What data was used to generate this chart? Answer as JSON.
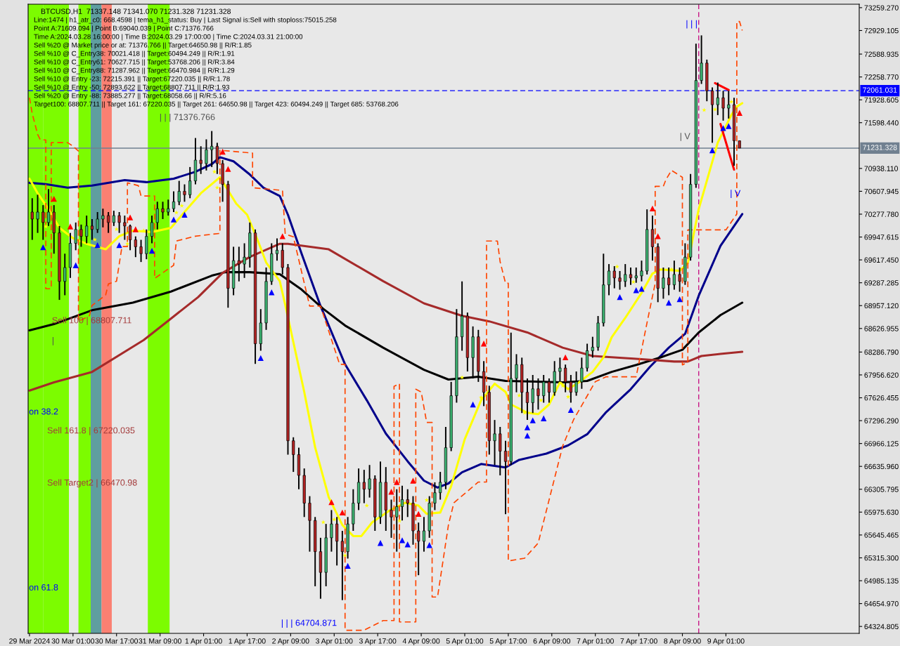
{
  "chart_data": {
    "type": "candlestick",
    "title": "BTCUSD,H1  71337.148 71341.070 71231.328 71231.328",
    "x": [
      "2024-03-29T10:00",
      "2024-03-29T12:00",
      "2024-03-29T14:00",
      "2024-03-29T16:00",
      "2024-03-29T18:00",
      "2024-03-29T20:00",
      "2024-03-29T22:00",
      "2024-03-30T00:00",
      "2024-03-30T02:00",
      "2024-03-30T04:00",
      "2024-03-30T06:00",
      "2024-03-30T08:00",
      "2024-03-30T10:00",
      "2024-03-30T12:00",
      "2024-03-30T14:00",
      "2024-03-30T16:00",
      "2024-03-30T18:00",
      "2024-03-30T20:00",
      "2024-03-30T22:00",
      "2024-03-31T00:00",
      "2024-03-31T02:00",
      "2024-03-31T04:00",
      "2024-03-31T06:00",
      "2024-03-31T08:00",
      "2024-03-31T10:00",
      "2024-03-31T12:00",
      "2024-03-31T14:00",
      "2024-03-31T16:00",
      "2024-03-31T18:00",
      "2024-03-31T20:00",
      "2024-03-31T22:00",
      "2024-04-01T00:00",
      "2024-04-01T02:00",
      "2024-04-01T04:00",
      "2024-04-01T06:00",
      "2024-04-01T08:00",
      "2024-04-01T10:00",
      "2024-04-01T12:00",
      "2024-04-01T14:00",
      "2024-04-01T16:00",
      "2024-04-01T18:00",
      "2024-04-01T20:00",
      "2024-04-01T22:00",
      "2024-04-02T00:00",
      "2024-04-02T02:00",
      "2024-04-02T04:00",
      "2024-04-02T06:00",
      "2024-04-02T08:00",
      "2024-04-02T10:00",
      "2024-04-02T12:00",
      "2024-04-02T14:00",
      "2024-04-02T16:00",
      "2024-04-02T18:00",
      "2024-04-02T20:00",
      "2024-04-02T22:00",
      "2024-04-03T00:00",
      "2024-04-03T02:00",
      "2024-04-03T04:00",
      "2024-04-03T06:00",
      "2024-04-03T08:00",
      "2024-04-03T10:00",
      "2024-04-03T12:00",
      "2024-04-03T14:00",
      "2024-04-03T16:00",
      "2024-04-03T18:00",
      "2024-04-03T20:00",
      "2024-04-03T22:00",
      "2024-04-04T00:00",
      "2024-04-04T02:00",
      "2024-04-04T04:00",
      "2024-04-04T06:00",
      "2024-04-04T08:00",
      "2024-04-04T10:00",
      "2024-04-04T12:00",
      "2024-04-04T14:00",
      "2024-04-04T16:00",
      "2024-04-04T18:00",
      "2024-04-04T20:00",
      "2024-04-04T22:00",
      "2024-04-05T00:00",
      "2024-04-05T02:00",
      "2024-04-05T04:00",
      "2024-04-05T06:00",
      "2024-04-05T08:00",
      "2024-04-05T10:00",
      "2024-04-05T12:00",
      "2024-04-05T14:00",
      "2024-04-05T16:00",
      "2024-04-05T18:00",
      "2024-04-05T20:00",
      "2024-04-05T22:00",
      "2024-04-06T00:00",
      "2024-04-06T02:00",
      "2024-04-06T04:00",
      "2024-04-06T06:00",
      "2024-04-06T08:00",
      "2024-04-06T10:00",
      "2024-04-06T12:00",
      "2024-04-06T14:00",
      "2024-04-06T16:00",
      "2024-04-06T18:00",
      "2024-04-06T20:00",
      "2024-04-06T22:00",
      "2024-04-07T00:00",
      "2024-04-07T02:00",
      "2024-04-07T04:00",
      "2024-04-07T06:00",
      "2024-04-07T08:00",
      "2024-04-07T10:00",
      "2024-04-07T12:00",
      "2024-04-07T14:00",
      "2024-04-07T16:00",
      "2024-04-07T18:00",
      "2024-04-07T20:00",
      "2024-04-07T22:00",
      "2024-04-08T00:00",
      "2024-04-08T02:00",
      "2024-04-08T04:00",
      "2024-04-08T06:00",
      "2024-04-08T08:00",
      "2024-04-08T10:00",
      "2024-04-08T12:00",
      "2024-04-08T14:00",
      "2024-04-08T16:00",
      "2024-04-08T18:00",
      "2024-04-08T20:00",
      "2024-04-08T22:00",
      "2024-04-09T00:00",
      "2024-04-09T02:00",
      "2024-04-09T04:00",
      "2024-04-09T06:00"
    ],
    "ohlc": [
      [
        70308,
        70508,
        69907,
        70207
      ],
      [
        70207,
        70558,
        70007,
        70308
      ],
      [
        70308,
        70408,
        69907,
        70157
      ],
      [
        70157,
        70640,
        70107,
        70308
      ],
      [
        70308,
        70408,
        69707,
        70007
      ],
      [
        70007,
        70107,
        69040,
        69307
      ],
      [
        69307,
        69707,
        69107,
        69507
      ],
      [
        69507,
        70007,
        69357,
        69857
      ],
      [
        69857,
        70157,
        69757,
        70057
      ],
      [
        70057,
        70127,
        69807,
        69957
      ],
      [
        69957,
        70257,
        69857,
        70107
      ],
      [
        70107,
        70207,
        69907,
        70057
      ],
      [
        70057,
        70308,
        70007,
        70207
      ],
      [
        70207,
        70357,
        70087,
        70257
      ],
      [
        70257,
        70308,
        70007,
        70157
      ],
      [
        70157,
        70327,
        70107,
        70257
      ],
      [
        70257,
        70308,
        70007,
        70157
      ],
      [
        70157,
        70257,
        69907,
        70107
      ],
      [
        70107,
        70127,
        69757,
        69907
      ],
      [
        69907,
        69957,
        69657,
        69807
      ],
      [
        69807,
        69907,
        69587,
        69707
      ],
      [
        69707,
        70057,
        69627,
        69957
      ],
      [
        69957,
        70257,
        69857,
        70157
      ],
      [
        70157,
        70457,
        70057,
        70357
      ],
      [
        70357,
        70457,
        70207,
        70308
      ],
      [
        70308,
        70488,
        70257,
        70357
      ],
      [
        70357,
        70608,
        70308,
        70457
      ],
      [
        70457,
        70758,
        70408,
        70608
      ],
      [
        70608,
        70708,
        70457,
        70558
      ],
      [
        70558,
        70958,
        70508,
        70758
      ],
      [
        70758,
        71377,
        70708,
        71058
      ],
      [
        71058,
        71258,
        70858,
        71008
      ],
      [
        71008,
        71358,
        70908,
        71208
      ],
      [
        71208,
        71478,
        70958,
        71258
      ],
      [
        71258,
        71308,
        70858,
        71008
      ],
      [
        71008,
        71058,
        70457,
        70708
      ],
      [
        70708,
        70758,
        68927,
        69207
      ],
      [
        69207,
        69807,
        69107,
        69607
      ],
      [
        69607,
        69807,
        69307,
        69557
      ],
      [
        69557,
        69857,
        69357,
        69657
      ],
      [
        69657,
        70157,
        69507,
        70007
      ],
      [
        70007,
        70057,
        68116,
        68407
      ],
      [
        68407,
        68907,
        68306,
        68707
      ],
      [
        68707,
        69507,
        68607,
        69307
      ],
      [
        69307,
        69857,
        69257,
        69707
      ],
      [
        69707,
        69927,
        69607,
        69757
      ],
      [
        69757,
        69857,
        69407,
        69507
      ],
      [
        69507,
        69557,
        66806,
        67006
      ],
      [
        67006,
        67056,
        66556,
        66806
      ],
      [
        66806,
        66906,
        66306,
        66506
      ],
      [
        66506,
        66606,
        65905,
        66105
      ],
      [
        66105,
        66206,
        65405,
        65855
      ],
      [
        65855,
        65905,
        64905,
        65405
      ],
      [
        65405,
        65605,
        64725,
        65105
      ],
      [
        65105,
        65805,
        64905,
        65605
      ],
      [
        65605,
        66005,
        65405,
        65805
      ],
      [
        65805,
        65905,
        65205,
        65555
      ],
      [
        65555,
        65705,
        64705,
        65405
      ],
      [
        65405,
        65905,
        65305,
        65805
      ],
      [
        65805,
        66306,
        65705,
        66105
      ],
      [
        66105,
        66606,
        66005,
        66406
      ],
      [
        66406,
        66586,
        66105,
        66306
      ],
      [
        66306,
        66656,
        66186,
        66456
      ],
      [
        66456,
        66506,
        65705,
        65905
      ],
      [
        65905,
        66706,
        65805,
        66406
      ],
      [
        66406,
        66626,
        65705,
        66005
      ],
      [
        66005,
        66156,
        65605,
        65905
      ],
      [
        65905,
        66306,
        65405,
        66055
      ],
      [
        66055,
        66356,
        65855,
        66156
      ],
      [
        66156,
        66306,
        65905,
        66105
      ],
      [
        66105,
        66206,
        65505,
        65705
      ],
      [
        65705,
        65825,
        65065,
        65555
      ],
      [
        65555,
        65905,
        65405,
        65705
      ],
      [
        65705,
        66206,
        65605,
        66105
      ],
      [
        66105,
        66406,
        66005,
        66256
      ],
      [
        66256,
        66556,
        66156,
        66406
      ],
      [
        66406,
        67206,
        66306,
        66906
      ],
      [
        66906,
        67856,
        66856,
        67656
      ],
      [
        67656,
        68907,
        67556,
        68507
      ],
      [
        68507,
        69307,
        68306,
        68807
      ],
      [
        68807,
        68857,
        68006,
        68206
      ],
      [
        68206,
        68657,
        67906,
        68507
      ],
      [
        68507,
        68607,
        67856,
        68006
      ],
      [
        68006,
        68156,
        67506,
        67706
      ],
      [
        67706,
        67800,
        66806,
        67006
      ],
      [
        67006,
        67306,
        66656,
        67106
      ],
      [
        67106,
        67206,
        66506,
        66856
      ],
      [
        66856,
        67006,
        65945,
        66706
      ],
      [
        66706,
        68567,
        66656,
        67906
      ],
      [
        67906,
        68256,
        67706,
        68106
      ],
      [
        68106,
        68206,
        67406,
        67706
      ],
      [
        67706,
        67906,
        67306,
        67556
      ],
      [
        67556,
        67956,
        67406,
        67756
      ],
      [
        67756,
        67906,
        67456,
        67656
      ],
      [
        67656,
        67956,
        67556,
        67856
      ],
      [
        67856,
        67906,
        67556,
        67706
      ],
      [
        67706,
        68156,
        67656,
        68006
      ],
      [
        68006,
        68206,
        67856,
        68056
      ],
      [
        68056,
        68106,
        67706,
        67856
      ],
      [
        67856,
        67956,
        67556,
        67706
      ],
      [
        67706,
        68006,
        67656,
        67856
      ],
      [
        67856,
        68206,
        67756,
        68056
      ],
      [
        68056,
        68407,
        68006,
        68306
      ],
      [
        68306,
        68507,
        68206,
        68357
      ],
      [
        68357,
        68807,
        68306,
        68707
      ],
      [
        68707,
        69707,
        68657,
        69257
      ],
      [
        69257,
        69557,
        69107,
        69457
      ],
      [
        69457,
        69527,
        69207,
        69357
      ],
      [
        69357,
        69457,
        69187,
        69307
      ],
      [
        69307,
        69557,
        69227,
        69407
      ],
      [
        69407,
        69507,
        69257,
        69357
      ],
      [
        69357,
        69507,
        69287,
        69387
      ],
      [
        69387,
        69607,
        69307,
        69457
      ],
      [
        69457,
        70347,
        69407,
        70057
      ],
      [
        70057,
        70257,
        69607,
        69807
      ],
      [
        69807,
        69857,
        69007,
        69207
      ],
      [
        69207,
        69507,
        69057,
        69357
      ],
      [
        69357,
        69507,
        69107,
        69257
      ],
      [
        69257,
        69607,
        69187,
        69407
      ],
      [
        69407,
        69507,
        69157,
        69307
      ],
      [
        69307,
        69857,
        69257,
        69657
      ],
      [
        69657,
        70858,
        69607,
        70708
      ],
      [
        70708,
        72739,
        70658,
        72208
      ],
      [
        72208,
        72859,
        72158,
        72459
      ],
      [
        72459,
        72509,
        71908,
        72058
      ],
      [
        72058,
        72108,
        71308,
        71858
      ],
      [
        71858,
        72178,
        71708,
        71958
      ],
      [
        71958,
        72058,
        71628,
        71808
      ],
      [
        71808,
        72058,
        71658,
        71858
      ],
      [
        71858,
        71958,
        70978,
        71338
      ],
      [
        71337.148,
        71341.07,
        71231.328,
        71231.328
      ]
    ],
    "series": [
      {
        "type": "line",
        "color": "#00008b",
        "x": [
          "2024-03-29T09:00",
          "2024-03-29T15:00",
          "2024-03-29T23:00",
          "2024-03-30T08:00",
          "2024-03-30T20:00",
          "2024-03-31T04:00",
          "2024-03-31T14:00",
          "2024-03-31T22:00",
          "2024-04-01T04:00",
          "2024-04-01T07:00",
          "2024-04-01T12:00",
          "2024-04-01T18:00",
          "2024-04-01T23:00",
          "2024-04-02T05:00",
          "2024-04-02T08:00",
          "2024-04-02T13:00",
          "2024-04-02T20:00",
          "2024-04-03T05:00",
          "2024-04-03T13:00",
          "2024-04-03T20:00",
          "2024-04-04T04:00",
          "2024-04-04T10:00",
          "2024-04-04T15:00",
          "2024-04-04T19:00",
          "2024-04-05T00:00",
          "2024-04-05T07:00",
          "2024-04-05T16:00",
          "2024-04-05T21:00",
          "2024-04-06T07:00",
          "2024-04-06T15:00",
          "2024-04-06T22:00",
          "2024-04-07T05:00",
          "2024-04-07T14:00",
          "2024-04-07T21:00",
          "2024-04-08T04:00",
          "2024-04-08T10:00",
          "2024-04-08T15:00",
          "2024-04-08T23:00",
          "2024-04-09T07:00"
        ],
        "values": [
          70730,
          70710,
          70660,
          70690,
          70770,
          70740,
          70790,
          70890,
          71000,
          71100,
          71040,
          70850,
          70660,
          70540,
          70270,
          69710,
          68950,
          68110,
          67590,
          67110,
          66710,
          66430,
          66330,
          66390,
          66550,
          66670,
          66620,
          66730,
          66820,
          66940,
          67100,
          67420,
          67750,
          68070,
          68350,
          68550,
          69100,
          69820,
          70280
        ]
      },
      {
        "type": "line",
        "color": "#000000",
        "x": [
          "2024-03-29T09:00",
          "2024-03-29T18:00",
          "2024-03-30T08:00",
          "2024-03-30T23:00",
          "2024-03-31T13:00",
          "2024-04-01T04:00",
          "2024-04-01T09:00",
          "2024-04-01T18:00",
          "2024-04-02T05:00",
          "2024-04-02T13:00",
          "2024-04-02T21:00",
          "2024-04-03T05:00",
          "2024-04-03T19:00",
          "2024-04-04T10:00",
          "2024-04-04T19:00",
          "2024-04-05T06:00",
          "2024-04-05T16:00",
          "2024-04-06T13:00",
          "2024-04-06T22:00",
          "2024-04-07T07:00",
          "2024-04-07T16:00",
          "2024-04-08T01:00",
          "2024-04-08T09:00",
          "2024-04-08T15:00",
          "2024-04-08T23:00",
          "2024-04-09T07:00"
        ],
        "values": [
          68600,
          68690,
          68890,
          69000,
          69160,
          69390,
          69440,
          69440,
          69410,
          69190,
          68910,
          68670,
          68350,
          68030,
          67890,
          67930,
          67870,
          67850,
          67870,
          68000,
          68100,
          68210,
          68320,
          68570,
          68820,
          69000
        ]
      },
      {
        "type": "line",
        "color": "#a52a2a",
        "x": [
          "2024-03-29T09:00",
          "2024-03-29T18:00",
          "2024-03-30T08:00",
          "2024-03-31T03:00",
          "2024-03-31T13:00",
          "2024-03-31T23:00",
          "2024-04-01T08:00",
          "2024-04-01T18:00",
          "2024-04-02T05:00",
          "2024-04-02T08:00",
          "2024-04-02T23:00",
          "2024-04-03T19:00",
          "2024-04-04T10:00",
          "2024-04-05T00:00",
          "2024-04-05T10:00",
          "2024-04-06T00:00",
          "2024-04-06T13:00",
          "2024-04-07T00:00",
          "2024-04-07T16:00",
          "2024-04-08T06:00",
          "2024-04-08T11:00",
          "2024-04-08T16:00",
          "2024-04-08T23:00",
          "2024-04-09T07:00"
        ],
        "values": [
          67730,
          67850,
          68000,
          68460,
          68770,
          69080,
          69430,
          69660,
          69850,
          69850,
          69770,
          69310,
          68990,
          68810,
          68730,
          68570,
          68350,
          68230,
          68190,
          68150,
          68150,
          68230,
          68260,
          68290
        ]
      },
      {
        "type": "line",
        "color": "#ffff00",
        "x": [
          "2024-03-29T09:00",
          "2024-03-29T12:00",
          "2024-03-29T16:00",
          "2024-03-29T20:00",
          "2024-03-30T01:00",
          "2024-03-30T06:00",
          "2024-03-30T13:00",
          "2024-03-30T18:00",
          "2024-03-30T23:00",
          "2024-03-31T06:00",
          "2024-03-31T13:00",
          "2024-03-31T18:00",
          "2024-04-01T00:00",
          "2024-04-01T07:00",
          "2024-04-01T13:00",
          "2024-04-01T17:00",
          "2024-04-01T21:00",
          "2024-04-02T00:00",
          "2024-04-02T05:00",
          "2024-04-02T07:00",
          "2024-04-02T10:00",
          "2024-04-02T14:00",
          "2024-04-02T18:00",
          "2024-04-02T23:00",
          "2024-04-03T04:00",
          "2024-04-03T08:00",
          "2024-04-03T11:00",
          "2024-04-03T15:00",
          "2024-04-03T21:00",
          "2024-04-04T03:00",
          "2024-04-04T08:00",
          "2024-04-04T11:00",
          "2024-04-04T16:00",
          "2024-04-04T20:00",
          "2024-04-05T01:00",
          "2024-04-05T07:00",
          "2024-04-05T12:00",
          "2024-04-05T16:00",
          "2024-04-05T18:00",
          "2024-04-06T00:00",
          "2024-04-06T04:00",
          "2024-04-06T08:00",
          "2024-04-06T12:00",
          "2024-04-06T15:00",
          "2024-04-06T19:00",
          "2024-04-07T00:00",
          "2024-04-07T04:00",
          "2024-04-07T07:00",
          "2024-04-07T12:00",
          "2024-04-07T18:00",
          "2024-04-07T22:00",
          "2024-04-08T01:00",
          "2024-04-08T08:00",
          "2024-04-08T11:00",
          "2024-04-08T15:00",
          "2024-04-08T22:00",
          "2024-04-09T03:00",
          "2024-04-09T05:00",
          "2024-04-09T07:00"
        ],
        "values": [
          70790,
          70580,
          70350,
          70080,
          69930,
          69850,
          69770,
          69960,
          70040,
          70020,
          70080,
          70310,
          70580,
          70810,
          70430,
          70270,
          69890,
          69580,
          69310,
          68970,
          68430,
          67710,
          66910,
          66190,
          65790,
          65630,
          65630,
          65830,
          65990,
          66110,
          66070,
          65950,
          65970,
          66350,
          67030,
          67590,
          67830,
          67710,
          67530,
          67410,
          67390,
          67530,
          67850,
          67750,
          67850,
          68000,
          68210,
          68500,
          68780,
          69140,
          69420,
          69480,
          69460,
          69570,
          70350,
          71310,
          71710,
          71830,
          71880
        ]
      },
      {
        "type": "line",
        "color": "#ff4500",
        "line_style": "dashed",
        "x": [
          "2024-03-29T09:00",
          "2024-03-29T10:00",
          "2024-03-29T12:00",
          "2024-03-29T13:00",
          "2024-03-29T15:00",
          "2024-03-29T15:00",
          "2024-03-29T17:00",
          "2024-03-29T17:00",
          "2024-03-29T23:00",
          "2024-03-30T01:00",
          "2024-03-30T03:00",
          "2024-03-30T03:00",
          "2024-03-30T07:00",
          "2024-03-30T08:00",
          "2024-03-30T13:00",
          "2024-03-30T14:00",
          "2024-03-30T17:00",
          "2024-03-30T19:00",
          "2024-03-30T21:00",
          "2024-03-30T21:00",
          "2024-03-31T01:00",
          "2024-03-31T02:00",
          "2024-03-31T07:00",
          "2024-03-31T07:00",
          "2024-03-31T14:00",
          "2024-03-31T15:00",
          "2024-03-31T22:00",
          "2024-04-01T07:00",
          "2024-04-01T07:00",
          "2024-04-01T19:00",
          "2024-04-01T19:00",
          "2024-04-02T06:00",
          "2024-04-02T07:00",
          "2024-04-02T10:00",
          "2024-04-02T16:00",
          "2024-04-02T20:00",
          "2024-04-03T03:00",
          "2024-04-03T05:00",
          "2024-04-03T05:00",
          "2024-04-03T12:00",
          "2024-04-03T19:00",
          "2024-04-03T23:00",
          "2024-04-03T23:00",
          "2024-04-04T01:00",
          "2024-04-04T01:00",
          "2024-04-04T07:00",
          "2024-04-04T07:00",
          "2024-04-04T09:00",
          "2024-04-04T11:00",
          "2024-04-04T13:00",
          "2024-04-04T13:00",
          "2024-04-04T15:00",
          "2024-04-04T19:00",
          "2024-04-04T21:00",
          "2024-04-05T06:00",
          "2024-04-05T09:00",
          "2024-04-05T09:00",
          "2024-04-05T13:00",
          "2024-04-05T14:00",
          "2024-04-05T16:00",
          "2024-04-05T17:00",
          "2024-04-05T17:00",
          "2024-04-05T23:00",
          "2024-04-06T04:00",
          "2024-04-06T13:00",
          "2024-04-06T17:00",
          "2024-04-07T01:00",
          "2024-04-07T05:00",
          "2024-04-07T16:00",
          "2024-04-07T20:00",
          "2024-04-07T23:00",
          "2024-04-07T23:00",
          "2024-04-08T02:00",
          "2024-04-08T03:00",
          "2024-04-08T05:00",
          "2024-04-08T07:00",
          "2024-04-08T09:00",
          "2024-04-08T09:00",
          "2024-04-08T11:00",
          "2024-04-08T11:00",
          "2024-04-09T01:00",
          "2024-04-09T05:00",
          "2024-04-09T05:00",
          "2024-04-09T06:00",
          "2024-04-09T07:00"
        ],
        "values": [
          71960,
          71730,
          71430,
          71350,
          71350,
          69200,
          69200,
          71310,
          71310,
          71260,
          71190,
          68730,
          68810,
          68960,
          69110,
          69270,
          69310,
          69810,
          69810,
          70730,
          70690,
          70540,
          70540,
          69350,
          69540,
          69890,
          69960,
          70000,
          71200,
          71160,
          70660,
          70620,
          69990,
          69950,
          68950,
          68950,
          68110,
          68110,
          64270,
          64270,
          64410,
          64410,
          67790,
          67830,
          64390,
          64390,
          67750,
          67710,
          67270,
          67270,
          64750,
          64750,
          65790,
          66110,
          66410,
          66410,
          69890,
          69890,
          69590,
          69280,
          69280,
          65270,
          65310,
          65530,
          66930,
          67310,
          67860,
          67930,
          67930,
          68710,
          69280,
          70680,
          70680,
          70780,
          70910,
          70860,
          70810,
          68100,
          68140,
          70050,
          70050,
          70280,
          73060,
          73060,
          72930
        ]
      },
      {
        "type": "line",
        "color": "#ff0000",
        "x": [
          "2024-04-08T21:00",
          "2024-04-09T02:00"
        ],
        "values": [
          72170,
          72070
        ]
      },
      {
        "type": "line",
        "color": "#ff0000",
        "x": [
          "2024-04-08T23:00",
          "2024-04-09T04:00"
        ],
        "values": [
          71580,
          70920
        ]
      },
      {
        "type": "scatter",
        "color": "#0000ff",
        "marker": "triangle",
        "x": [
          "2024-03-29T14:00",
          "2024-03-30T02:00",
          "2024-03-30T10:00",
          "2024-03-30T18:00",
          "2024-03-31T06:00",
          "2024-03-31T14:00",
          "2024-03-31T18:00",
          "2024-04-01T22:00",
          "2024-04-02T02:00",
          "2024-04-03T06:00",
          "2024-04-03T18:00",
          "2024-04-04T02:00",
          "2024-04-04T04:00",
          "2024-04-04T12:00",
          "2024-04-05T04:00",
          "2024-04-06T00:00",
          "2024-04-06T00:00",
          "2024-04-06T02:00",
          "2024-04-06T06:00",
          "2024-04-06T16:00",
          "2024-04-07T10:00",
          "2024-04-07T16:00",
          "2024-04-07T18:00",
          "2024-04-08T04:00",
          "2024-04-08T08:00",
          "2024-04-08T20:00",
          "2024-04-09T00:00",
          "2024-04-09T02:00"
        ],
        "values": [
          69800,
          69540,
          69830,
          69830,
          69750,
          70200,
          70270,
          68200,
          69150,
          65200,
          65530,
          65570,
          65510,
          65500,
          67530,
          67200,
          67080,
          67300,
          67330,
          67450,
          69080,
          69180,
          69200,
          69000,
          69050,
          71200,
          71520,
          71550
        ]
      },
      {
        "type": "scatter",
        "color": "#ff0000",
        "marker": "triangle",
        "x": [
          "2024-03-29T18:00",
          "2024-03-30T00:00",
          "2024-03-30T22:00",
          "2024-03-31T00:00",
          "2024-04-01T08:00",
          "2024-04-01T10:00",
          "2024-04-02T06:00",
          "2024-04-03T00:00",
          "2024-04-03T04:00",
          "2024-04-03T22:00",
          "2024-04-04T00:00",
          "2024-04-04T06:00",
          "2024-04-04T08:00",
          "2024-04-05T08:00",
          "2024-04-06T14:00",
          "2024-04-07T22:00",
          "2024-04-08T00:00",
          "2024-04-09T06:00"
        ],
        "values": [
          70500,
          70100,
          70230,
          70060,
          71180,
          70930,
          69960,
          66120,
          65970,
          66270,
          66410,
          66430,
          65950,
          68410,
          68210,
          70360,
          69960,
          71740
        ]
      },
      {
        "type": "scatter",
        "color": "#ffff00",
        "marker": "star",
        "x": [
          "2024-03-29T15:00",
          "2024-03-30T09:00",
          "2024-03-30T17:00",
          "2024-03-30T21:00",
          "2024-03-31T03:00",
          "2024-03-31T15:00",
          "2024-03-31T17:00",
          "2024-04-01T05:00",
          "2024-04-01T06:00",
          "2024-04-02T21:00",
          "2024-04-03T01:00",
          "2024-04-03T05:00",
          "2024-04-03T13:00",
          "2024-04-04T01:00",
          "2024-04-04T11:00",
          "2024-04-05T00:00",
          "2024-04-05T07:00",
          "2024-04-05T21:00",
          "2024-04-05T23:00",
          "2024-04-06T05:00",
          "2024-04-06T13:00",
          "2024-04-06T15:00",
          "2024-04-07T09:00",
          "2024-04-07T15:00",
          "2024-04-08T05:00",
          "2024-04-08T17:00",
          "2024-04-08T21:00",
          "2024-04-09T03:00"
        ],
        "values": [
          70100,
          69910,
          70060,
          69850,
          70040,
          70300,
          70400,
          70890,
          70660,
          65830,
          65870,
          65350,
          66070,
          65850,
          66150,
          67920,
          67630,
          67660,
          67410,
          67590,
          67800,
          67640,
          69520,
          69300,
          69480,
          71780,
          71790,
          71900
        ]
      }
    ],
    "xlim": [
      "2024-03-29T08:30",
      "2024-04-11T02:00"
    ],
    "ylim": [
      64225,
      73309
    ],
    "xticks": [
      {
        "value": "2024-03-29T09:00",
        "label": "29 Mar 2024"
      },
      {
        "value": "2024-03-30T01:00",
        "label": "30 Mar 01:00"
      },
      {
        "value": "2024-03-30T17:00",
        "label": "30 Mar 17:00"
      },
      {
        "value": "2024-03-31T09:00",
        "label": "31 Mar 09:00"
      },
      {
        "value": "2024-04-01T01:00",
        "label": "1 Apr 01:00"
      },
      {
        "value": "2024-04-01T17:00",
        "label": "1 Apr 17:00"
      },
      {
        "value": "2024-04-02T09:00",
        "label": "2 Apr 09:00"
      },
      {
        "value": "2024-04-03T01:00",
        "label": "3 Apr 01:00"
      },
      {
        "value": "2024-04-03T17:00",
        "label": "3 Apr 17:00"
      },
      {
        "value": "2024-04-04T09:00",
        "label": "4 Apr 09:00"
      },
      {
        "value": "2024-04-05T01:00",
        "label": "5 Apr 01:00"
      },
      {
        "value": "2024-04-05T17:00",
        "label": "5 Apr 17:00"
      },
      {
        "value": "2024-04-06T09:00",
        "label": "6 Apr 09:00"
      },
      {
        "value": "2024-04-07T01:00",
        "label": "7 Apr 01:00"
      },
      {
        "value": "2024-04-07T17:00",
        "label": "7 Apr 17:00"
      },
      {
        "value": "2024-04-08T09:00",
        "label": "8 Apr 09:00"
      },
      {
        "value": "2024-04-09T01:00",
        "label": "9 Apr 01:00"
      }
    ],
    "yticks": [
      {
        "value": 73259.27,
        "label": "73259.270"
      },
      72929.105,
      72588.935,
      {
        "value": 72258.77,
        "label": "72258.770"
      },
      71928.605,
      {
        "value": 71598.44,
        "label": "71598.440"
      },
      {
        "value": 70938.11,
        "label": "70938.110"
      },
      70607.945,
      {
        "value": 70277.78,
        "label": "70277.780"
      },
      69947.615,
      {
        "value": 69617.45,
        "label": "69617.450"
      },
      69287.285,
      {
        "value": 68957.12,
        "label": "68957.120"
      },
      68626.955,
      {
        "value": 68286.79,
        "label": "68286.790"
      },
      {
        "value": 67956.62,
        "label": "67956.620"
      },
      67626.455,
      {
        "value": 67296.29,
        "label": "67296.290"
      },
      66966.125,
      {
        "value": 66635.96,
        "label": "66635.960"
      },
      66305.795,
      {
        "value": 65975.63,
        "label": "65975.630"
      },
      65645.465,
      {
        "value": 65315.3,
        "label": "65315.300"
      },
      64985.135,
      {
        "value": 64654.97,
        "label": "64654.970"
      },
      64324.805
    ],
    "ref_lines": [
      {
        "axis": "y",
        "value": 72061.031,
        "label": "72061.031",
        "color": "#0000ff",
        "line_style": "dashed"
      },
      {
        "axis": "y",
        "value": 71231.328,
        "label": "71231.328",
        "color": "#708090"
      },
      {
        "axis": "x",
        "value": "2024-04-08T15:00",
        "color": "#c71585",
        "line_style": "dashed"
      }
    ],
    "bands": [
      {
        "axis": "x",
        "from": "2024-03-29T08:30",
        "to": "2024-03-29T14:00",
        "color": "#7cfc00"
      },
      {
        "axis": "x",
        "from": "2024-03-29T14:00",
        "to": "2024-03-29T23:30",
        "color": "#7cfc00"
      },
      {
        "axis": "x",
        "from": "2024-03-30T03:00",
        "to": "2024-03-30T07:30",
        "color": "#7cfc00"
      },
      {
        "axis": "x",
        "from": "2024-03-30T07:30",
        "to": "2024-03-30T11:30",
        "color": "#5f9ea0"
      },
      {
        "axis": "x",
        "from": "2024-03-30T11:30",
        "to": "2024-03-30T15:15",
        "color": "#fa8072"
      },
      {
        "axis": "x",
        "from": "2024-03-31T04:30",
        "to": "2024-03-31T12:30",
        "color": "#7cfc00"
      }
    ],
    "annotations": [
      "Line:1474 | h1_atr_c0: 668.4598 | tema_h1_status: Buy | Last Signal is:Sell with stoploss:75015.258",
      "Point A:71609.094 | Point B:69040.039 | Point C:71376.766",
      "Time A:2024.03.28 16:00:00 | Time B:2024.03.29 17:00:00 | Time C:2024.03.31 21:00:00",
      "Sell %20 @ Market price or at: 71376.766 || Target:64650.98 || R/R:1.85",
      "Sell %10 @ C_Entry38: 70021.418 || Target:60494.249 || R/R:1.91",
      "Sell %10 @ C_Entry61: 70627.715 || Target:53768.206 || R/R:3.84",
      "Sell %10 @ C_Entry88: 71287.962 || Target:66470.984 || R/R:1.29",
      "Sell %10 @ Entry -23: 72215.391 || Target:67220.035 || R/R:1.78",
      "Sell %10 @ Entry -50: 72893.622 || Target:68807.711 || R/R:1.93",
      "Sell %20 @ Entry -88: 73885.277 || Target:68058.66 || R/R:5.16",
      "Target100: 68807.711 || Target 161: 67220.035 || Target 261: 64650.98 || Target 423: 60494.249 || Target 685: 53768.206",
      "Sell 100 | 68807.711",
      "Sell 161.8 | 67220.035",
      "Sell Target2 | 66470.98",
      "on 38.2",
      "on 61.8",
      "|",
      "| | | 71376.766",
      "| | | 64704.871",
      "| | |",
      "| V",
      "| V"
    ]
  }
}
